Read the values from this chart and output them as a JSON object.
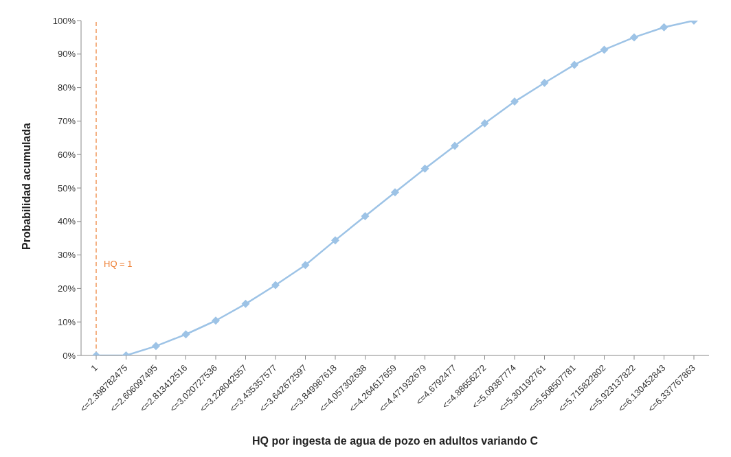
{
  "chart_data": {
    "type": "line",
    "xlabel": "HQ por ingesta de agua de pozo en adultos variando C",
    "ylabel": "Probabilidad acumulada",
    "categories": [
      "1",
      "<=2.398782475",
      "<=2.606097495",
      "<=2.813412516",
      "<=3.020727536",
      "<=3.228042557",
      "<=3.435357577",
      "<=3.642672597",
      "<=3.849987618",
      "<=4.057302638",
      "<=4.264617659",
      "<=4.471932679",
      "<=4.6792477",
      "<=4.88656272",
      "<=5.09387774",
      "<=5.301192761",
      "<=5.508507781",
      "<=5.715822802",
      "<=5.923137822",
      "<=6.130452843",
      "<=6.337767863"
    ],
    "series": [
      {
        "color": "#9dc3e6",
        "values": [
          0,
          0,
          2.8,
          6.3,
          10.4,
          15.4,
          21,
          27,
          34.4,
          41.6,
          48.7,
          55.8,
          62.6,
          69.3,
          75.8,
          81.4,
          86.8,
          91.3,
          95,
          98,
          100
        ]
      }
    ],
    "ylim": [
      0,
      100
    ],
    "yticks": [
      {
        "value": 0,
        "label": "0%"
      },
      {
        "value": 10,
        "label": "10%"
      },
      {
        "value": 20,
        "label": "20%"
      },
      {
        "value": 30,
        "label": "30%"
      },
      {
        "value": 40,
        "label": "40%"
      },
      {
        "value": 50,
        "label": "50%"
      },
      {
        "value": 60,
        "label": "60%"
      },
      {
        "value": 70,
        "label": "70%"
      },
      {
        "value": 80,
        "label": "80%"
      },
      {
        "value": 90,
        "label": "90%"
      },
      {
        "value": 100,
        "label": "100%"
      }
    ],
    "ref_lines": [
      {
        "axis": "x",
        "value": "1",
        "label": "HQ = 1",
        "color": "#ed7d31",
        "line_style": "dashed"
      }
    ],
    "marker": "diamond",
    "grid": false,
    "legend": false
  }
}
